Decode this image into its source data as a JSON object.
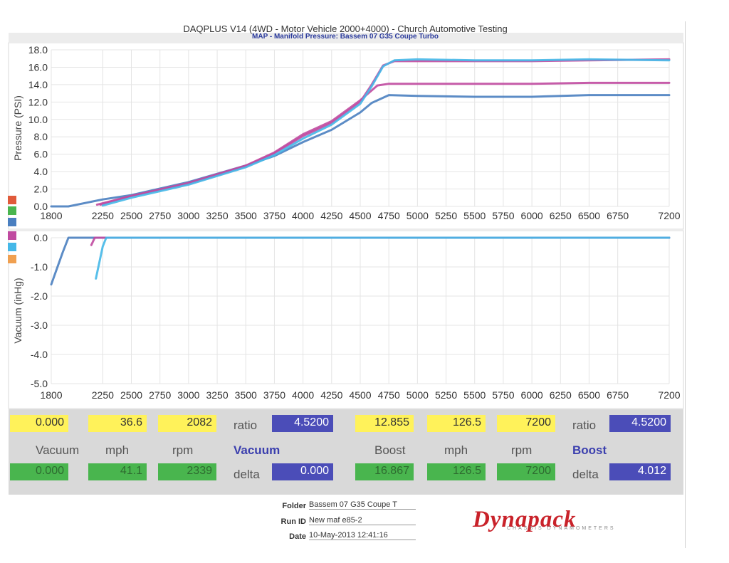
{
  "header": {
    "title": "DAQPLUS V14 (4WD - Motor Vehicle 2000+4000) - Church Automotive Testing",
    "subtitle": "MAP - Manifold Pressure: Bassem 07 G35 Coupe Turbo"
  },
  "chart_data": [
    {
      "type": "line",
      "ylabel": "Pressure (PSI)",
      "xlim": [
        1800,
        7200
      ],
      "ylim": [
        0,
        18
      ],
      "x_ticks": [
        "1800",
        "2250",
        "2500",
        "2750",
        "3000",
        "3250",
        "3500",
        "3750",
        "4000",
        "4250",
        "4500",
        "4750",
        "5000",
        "5250",
        "5500",
        "5750",
        "6000",
        "6250",
        "6500",
        "6750",
        "7200"
      ],
      "y_ticks": [
        "0.0",
        "2.0",
        "4.0",
        "6.0",
        "8.0",
        "10.0",
        "12.0",
        "14.0",
        "16.0",
        "18.0"
      ],
      "grid": true,
      "series": [
        {
          "color": "#4a7fc0",
          "x": [
            1800,
            1950,
            2250,
            2500,
            3000,
            3500,
            3750,
            4000,
            4250,
            4500,
            4600,
            4750,
            5000,
            5500,
            6000,
            6500,
            7200
          ],
          "y": [
            0,
            0,
            0.8,
            1.3,
            2.8,
            4.7,
            5.8,
            7.4,
            8.8,
            10.8,
            11.9,
            12.8,
            12.7,
            12.6,
            12.6,
            12.8,
            12.8
          ]
        },
        {
          "color": "#c04aa0",
          "x": [
            2200,
            2500,
            3000,
            3500,
            3750,
            4000,
            4250,
            4500,
            4650,
            4750,
            5000,
            5500,
            6000,
            6500,
            7200
          ],
          "y": [
            0.2,
            1.2,
            2.7,
            4.7,
            6.2,
            8.3,
            9.8,
            12.2,
            13.9,
            14.1,
            14.1,
            14.1,
            14.1,
            14.2,
            14.2
          ]
        },
        {
          "color": "#c04aa0",
          "x": [
            2230,
            2500,
            3000,
            3500,
            3750,
            4000,
            4250,
            4500,
            4600,
            4700,
            4800,
            5000,
            5500,
            6000,
            6500,
            7200
          ],
          "y": [
            0.2,
            1.2,
            2.6,
            4.6,
            6.1,
            8.1,
            9.6,
            12.0,
            14.0,
            16.2,
            16.7,
            16.7,
            16.7,
            16.7,
            16.8,
            16.9
          ]
        },
        {
          "color": "#45b8e8",
          "x": [
            2250,
            2500,
            3000,
            3500,
            3750,
            4000,
            4250,
            4500,
            4600,
            4700,
            4800,
            5000,
            5500,
            6000,
            6500,
            7200
          ],
          "y": [
            0.1,
            1.0,
            2.5,
            4.5,
            5.9,
            7.8,
            9.4,
            11.8,
            13.8,
            16.1,
            16.8,
            16.9,
            16.8,
            16.8,
            16.9,
            16.8
          ]
        }
      ]
    },
    {
      "type": "line",
      "ylabel": "Vacuum (inHg)",
      "xlim": [
        1800,
        7200
      ],
      "ylim": [
        -5,
        0
      ],
      "x_ticks": [
        "1800",
        "2250",
        "2500",
        "2750",
        "3000",
        "3250",
        "3500",
        "3750",
        "4000",
        "4250",
        "4500",
        "4750",
        "5000",
        "5250",
        "5500",
        "5750",
        "6000",
        "6250",
        "6500",
        "6750",
        "7200"
      ],
      "y_ticks": [
        "0.0",
        "-1.0",
        "-2.0",
        "-3.0",
        "-4.0",
        "-5.0"
      ],
      "grid": true,
      "series": [
        {
          "color": "#4a7fc0",
          "x": [
            1800,
            1900,
            1950,
            7200
          ],
          "y": [
            -1.6,
            -0.5,
            0,
            0
          ]
        },
        {
          "color": "#c04aa0",
          "x": [
            2150,
            2180,
            7200
          ],
          "y": [
            -0.25,
            0,
            0
          ]
        },
        {
          "color": "#45b8e8",
          "x": [
            2190,
            2250,
            2280,
            7200
          ],
          "y": [
            -1.4,
            -0.3,
            0,
            0
          ]
        }
      ]
    }
  ],
  "legend_colors": [
    "#e05a3a",
    "#49b54e",
    "#4a7fc0",
    "#c04aa0",
    "#45b8e8",
    "#f0a050"
  ],
  "panel": {
    "vacuum": {
      "top": [
        "0.000",
        "36.6",
        "2082"
      ],
      "ratio_label": "ratio",
      "ratio": "4.5200",
      "labels": [
        "Vacuum",
        "mph",
        "rpm"
      ],
      "name": "Vacuum",
      "bottom": [
        "0.000",
        "41.1",
        "2339"
      ],
      "delta_label": "delta",
      "delta": "0.000"
    },
    "boost": {
      "top": [
        "12.855",
        "126.5",
        "7200"
      ],
      "ratio_label": "ratio",
      "ratio": "4.5200",
      "labels": [
        "Boost",
        "mph",
        "rpm"
      ],
      "name": "Boost",
      "bottom": [
        "16.867",
        "126.5",
        "7200"
      ],
      "delta_label": "delta",
      "delta": "4.012"
    }
  },
  "footer": {
    "folder_label": "Folder",
    "folder": "Bassem 07 G35 Coupe T",
    "runid_label": "Run ID",
    "runid": "New maf e85-2",
    "date_label": "Date",
    "date": "10-May-2013 12:41:16",
    "logo": "Dynapack",
    "logo_sub": "CHASSIS DYNAMOMETERS"
  }
}
